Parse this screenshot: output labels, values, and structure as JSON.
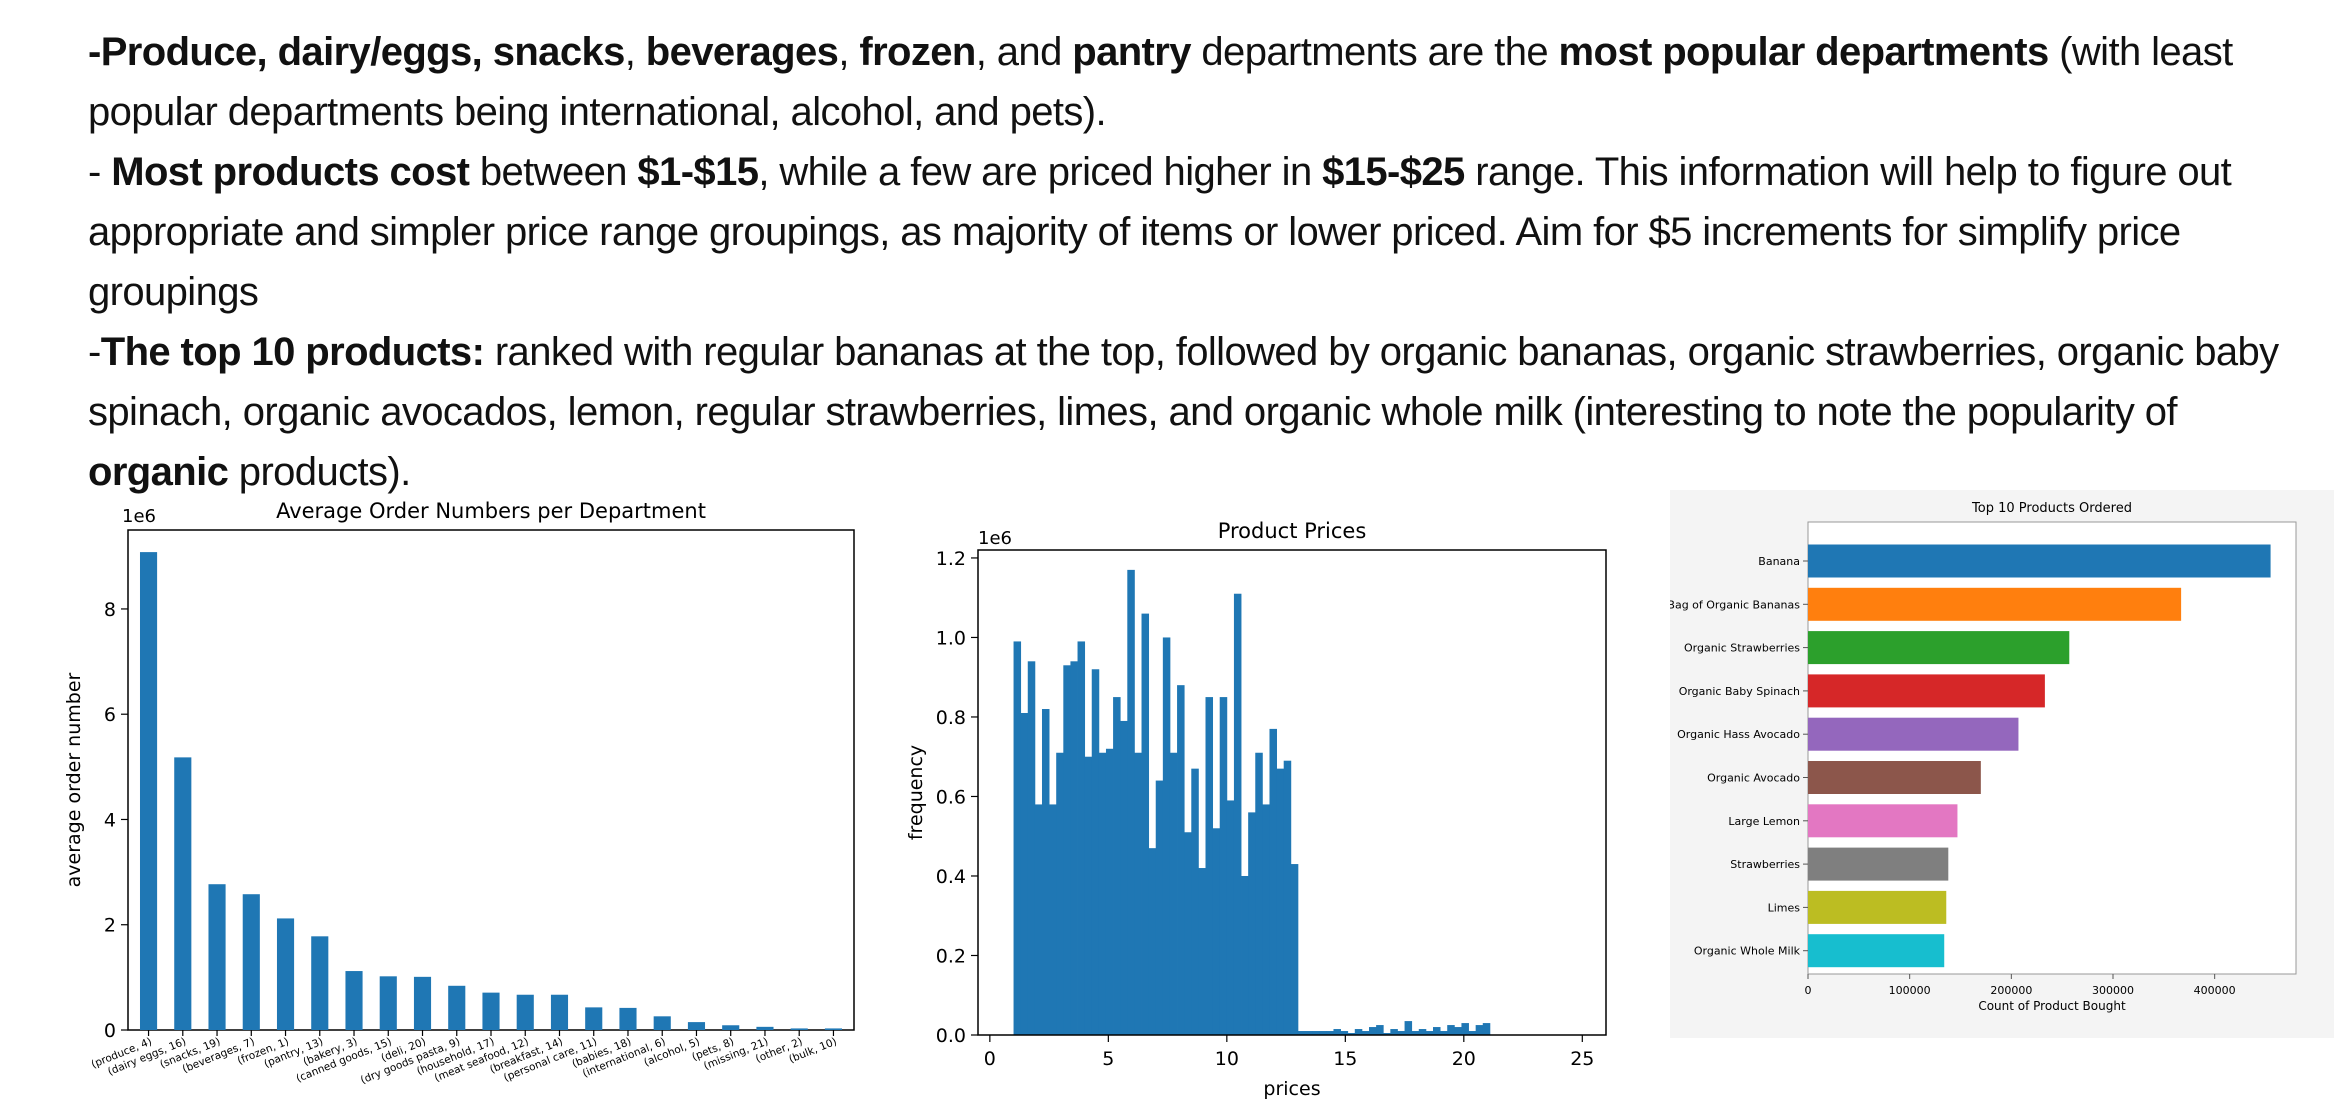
{
  "notes": {
    "line1": {
      "p1": "-Produce, dairy/eggs, snacks",
      "p2": ", ",
      "p3": "beverages",
      "p4": ", ",
      "p5": "frozen",
      "p6": ", and ",
      "p7": "pantry",
      "p8": " departments are the ",
      "p9": "most popular departments",
      "p10": " (with least popular departments being international, alcohol, and pets)."
    },
    "line2": {
      "p1": "- ",
      "p2": "Most products cost",
      "p3": " between ",
      "p4": "$1-$15",
      "p5": ", while a few are priced higher in ",
      "p6": "$15-$25",
      "p7": " range.  This information will help to figure out appropriate and simpler price range groupings, as majority of items or lower priced.   Aim for $5 increments for simplify price groupings"
    },
    "line3": {
      "p1": "-",
      "p2": "The top 10 products:",
      "p3": " ranked with regular bananas at the top, followed by organic bananas, organic strawberries, organic baby spinach, organic avocados, lemon, regular strawberries, limes, and organic whole milk (interesting to note the popularity of ",
      "p4": "organic",
      "p5": " products)."
    }
  },
  "chart_data": [
    {
      "type": "bar",
      "title": "Average Order Numbers per Department",
      "xlabel": "",
      "ylabel": "average order number",
      "offset_label": "1e6",
      "ylim": [
        0,
        9.5
      ],
      "yticks": [
        0,
        2,
        4,
        6,
        8
      ],
      "color": "#1f77b4",
      "categories": [
        "(produce, 4)",
        "(dairy eggs, 16)",
        "(snacks, 19)",
        "(beverages, 7)",
        "(frozen, 1)",
        "(pantry, 13)",
        "(bakery, 3)",
        "(canned goods, 15)",
        "(deli, 20)",
        "(dry goods pasta, 9)",
        "(household, 17)",
        "(meat seafood, 12)",
        "(breakfast, 14)",
        "(personal care, 11)",
        "(babies, 18)",
        "(international, 6)",
        "(alcohol, 5)",
        "(pets, 8)",
        "(missing, 21)",
        "(other, 2)",
        "(bulk, 10)"
      ],
      "values": [
        9.08,
        5.18,
        2.77,
        2.58,
        2.12,
        1.78,
        1.12,
        1.02,
        1.01,
        0.84,
        0.71,
        0.67,
        0.67,
        0.43,
        0.42,
        0.26,
        0.15,
        0.09,
        0.06,
        0.03,
        0.03
      ]
    },
    {
      "type": "bar",
      "subtype": "histogram",
      "title": "Product Prices",
      "xlabel": "prices",
      "ylabel": "frequency",
      "offset_label": "1e6",
      "xlim": [
        -0.5,
        26
      ],
      "ylim": [
        0,
        1.22
      ],
      "xticks": [
        0,
        5,
        10,
        15,
        20,
        25
      ],
      "yticks": [
        0.0,
        0.2,
        0.4,
        0.6,
        0.8,
        1.0,
        1.2
      ],
      "color": "#1f77b4",
      "bin_start": 1.0,
      "bin_width": 0.3,
      "values": [
        0.99,
        0.81,
        0.94,
        0.58,
        0.82,
        0.58,
        0.71,
        0.93,
        0.94,
        0.99,
        0.7,
        0.92,
        0.71,
        0.72,
        0.85,
        0.79,
        1.17,
        0.71,
        1.06,
        0.47,
        0.64,
        1.0,
        0.71,
        0.88,
        0.51,
        0.67,
        0.42,
        0.85,
        0.52,
        0.85,
        0.59,
        1.11,
        0.4,
        0.56,
        0.71,
        0.58,
        0.77,
        0.67,
        0.69,
        0.43,
        0.01,
        0.01,
        0.01,
        0.01,
        0.01,
        0.015,
        0.01,
        0.005,
        0.015,
        0.01,
        0.02,
        0.025,
        0.005,
        0.015,
        0.01,
        0.035,
        0.01,
        0.015,
        0.01,
        0.02,
        0.01,
        0.025,
        0.02,
        0.03,
        0.01,
        0.025,
        0.03
      ]
    },
    {
      "type": "bar",
      "orientation": "horizontal",
      "title": "Top 10 Products Ordered",
      "xlabel": "Count of Product Bought",
      "ylabel": "",
      "xlim": [
        0,
        480000
      ],
      "xticks": [
        0,
        100000,
        200000,
        300000,
        400000
      ],
      "categories": [
        "Banana",
        "Bag of Organic Bananas",
        "Organic Strawberries",
        "Organic Baby Spinach",
        "Organic Hass Avocado",
        "Organic Avocado",
        "Large Lemon",
        "Strawberries",
        "Limes",
        "Organic Whole Milk"
      ],
      "values": [
        455000,
        367000,
        257000,
        233000,
        207000,
        170000,
        147000,
        138000,
        136000,
        134000
      ],
      "colors": [
        "#1f77b4",
        "#ff7f0e",
        "#2ca02c",
        "#d62728",
        "#9467bd",
        "#8c564b",
        "#e377c2",
        "#7f7f7f",
        "#bcbd22",
        "#17becf"
      ]
    }
  ]
}
